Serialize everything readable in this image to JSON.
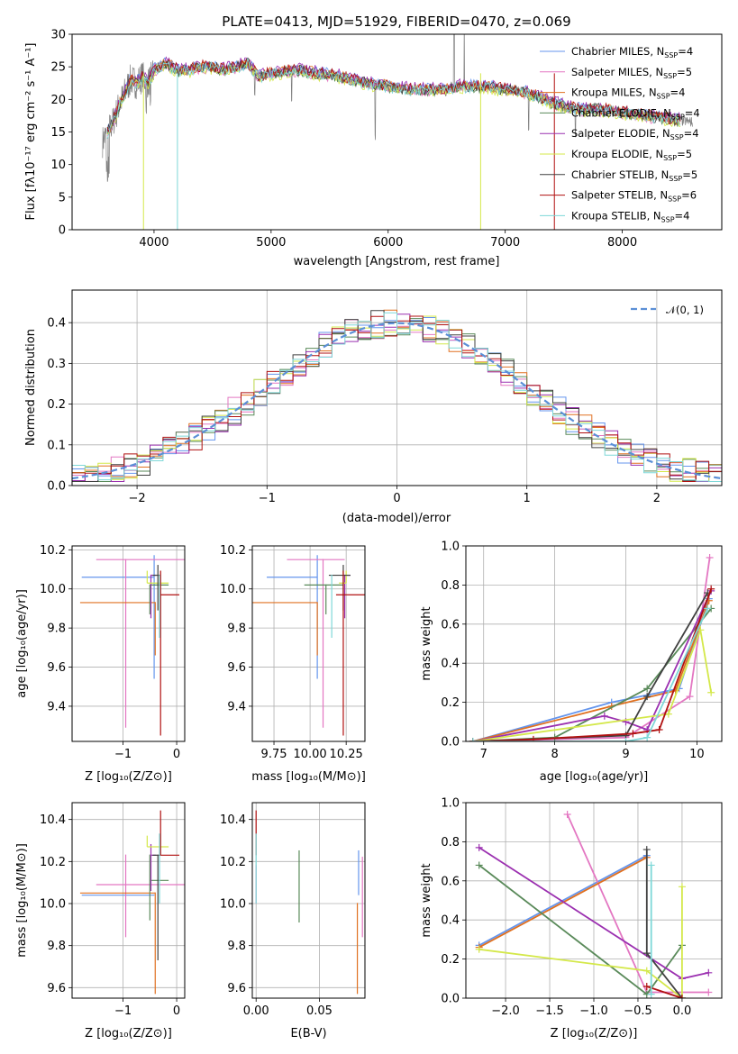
{
  "chart_data": [
    {
      "type": "line",
      "title": "PLATE=0413, MJD=51929, FIBERID=0470, z=0.069",
      "xlabel": "wavelength [Angstrom, rest frame]",
      "ylabel": "Flux [f_λ 10^-17 erg cm^-2 s^-1 A^-1]",
      "xlim": [
        3300,
        8850
      ],
      "ylim": [
        0,
        30
      ],
      "xticks": [
        "4000",
        "5000",
        "6000",
        "7000",
        "8000"
      ],
      "yticks": [
        "0",
        "5",
        "10",
        "15",
        "20",
        "25",
        "30"
      ],
      "legend_position": "top-right",
      "data_series": {
        "name": "data",
        "color": "#808080",
        "x": [
          3560,
          3600,
          3650,
          3700,
          3750,
          3800,
          3850,
          3900,
          3950,
          4000,
          4100,
          4200,
          4300,
          4400,
          4500,
          4600,
          4700,
          4800,
          4900,
          5000,
          5200,
          5400,
          5600,
          5800,
          6000,
          6200,
          6400,
          6500,
          6600,
          6800,
          7000,
          7200,
          7400,
          7600,
          7800,
          8000,
          8200,
          8400,
          8600
        ],
        "y": [
          13.5,
          15,
          16.5,
          19,
          21,
          23,
          22.5,
          23.5,
          22.5,
          24.5,
          25.5,
          24.5,
          24.5,
          25,
          25,
          24.5,
          25,
          25.5,
          23.5,
          24,
          24.5,
          24,
          23.5,
          22.5,
          22,
          21.5,
          21.5,
          21.5,
          22,
          22,
          21.5,
          21,
          19.5,
          18.5,
          18.5,
          18,
          17.5,
          17,
          16.5
        ]
      },
      "series": [
        {
          "name": "Chabrier MILES, N_SSP=4",
          "label_main": "Chabrier MILES, N",
          "label_sub": "SSP",
          "label_val": "=4",
          "color": "#6495ed",
          "offset": 0.2
        },
        {
          "name": "Salpeter MILES, N_SSP=5",
          "label_main": "Salpeter MILES, N",
          "label_sub": "SSP",
          "label_val": "=5",
          "color": "#e377c2",
          "offset": -0.2
        },
        {
          "name": "Kroupa MILES, N_SSP=4",
          "label_main": "Kroupa MILES, N",
          "label_sub": "SSP",
          "label_val": "=4",
          "color": "#e07020",
          "offset": 0.1
        },
        {
          "name": "Chabrier ELODIE, N_SSP=4",
          "label_main": "Chabrier ELODIE, N",
          "label_sub": "SSP",
          "label_val": "=4",
          "color": "#5a8a5a",
          "offset": -0.1
        },
        {
          "name": "Salpeter ELODIE, N_SSP=4",
          "label_main": "Salpeter ELODIE, N",
          "label_sub": "SSP",
          "label_val": "=4",
          "color": "#9b30b0",
          "offset": 0.3
        },
        {
          "name": "Kroupa ELODIE, N_SSP=5",
          "label_main": "Kroupa ELODIE, N",
          "label_sub": "SSP",
          "label_val": "=5",
          "color": "#d4e84a",
          "offset": -0.3
        },
        {
          "name": "Chabrier STELIB, N_SSP=5",
          "label_main": "Chabrier STELIB, N",
          "label_sub": "SSP",
          "label_val": "=5",
          "color": "#404040",
          "offset": 0.0
        },
        {
          "name": "Salpeter STELIB, N_SSP=6",
          "label_main": "Salpeter STELIB, N",
          "label_sub": "SSP",
          "label_val": "=6",
          "color": "#b01010",
          "offset": 0.15
        },
        {
          "name": "Kroupa STELIB, N_SSP=4",
          "label_main": "Kroupa STELIB, N",
          "label_sub": "SSP",
          "label_val": "=4",
          "color": "#7ed8d8",
          "offset": -0.15
        }
      ]
    },
    {
      "type": "histogram",
      "xlabel": "(data-model)/error",
      "ylabel": "Normed distribution",
      "xlim": [
        -2.5,
        2.5
      ],
      "ylim": [
        0,
        0.48
      ],
      "xticks": [
        "−2",
        "−1",
        "0",
        "1",
        "2"
      ],
      "yticks": [
        "0.0",
        "0.1",
        "0.2",
        "0.3",
        "0.4"
      ],
      "legend_position": "top-right",
      "reference": {
        "name": "N(0,1)",
        "color": "#5b8fd6",
        "mean": 0,
        "sigma": 1
      },
      "bin_width": 0.1,
      "bin_start": -2.6
    },
    {
      "type": "errorbar",
      "xlabel": "Z [log10(Z/Z⊙)]",
      "ylabel": "age [log10(age/yr)]",
      "xlim": [
        -1.95,
        0.15
      ],
      "ylim": [
        9.22,
        10.22
      ],
      "xticks": [
        "−1",
        "0"
      ],
      "yticks": [
        "9.4",
        "9.6",
        "9.8",
        "10.0",
        "10.2"
      ],
      "points": [
        {
          "color": "#6495ed",
          "x": -0.42,
          "xerr": [
            1.35,
            0.0
          ],
          "y": 10.06,
          "yerr": [
            0.52,
            0.11
          ]
        },
        {
          "color": "#e377c2",
          "x": -0.95,
          "xerr": [
            0.55,
            1.1
          ],
          "y": 10.15,
          "yerr": [
            0.86,
            0.0
          ]
        },
        {
          "color": "#e07020",
          "x": -0.4,
          "xerr": [
            1.4,
            0.0
          ],
          "y": 9.93,
          "yerr": [
            0.27,
            0.0
          ]
        },
        {
          "color": "#5a8a5a",
          "x": -0.5,
          "xerr": [
            0.0,
            0.35
          ],
          "y": 10.02,
          "yerr": [
            0.15,
            0.0
          ]
        },
        {
          "color": "#9b30b0",
          "x": -0.48,
          "xerr": [
            0.0,
            0.1
          ],
          "y": 10.07,
          "yerr": [
            0.22,
            0.0
          ]
        },
        {
          "color": "#d4e84a",
          "x": -0.55,
          "xerr": [
            0.0,
            0.4
          ],
          "y": 10.03,
          "yerr": [
            0.0,
            0.06
          ]
        },
        {
          "color": "#404040",
          "x": -0.35,
          "xerr": [
            0.1,
            0.05
          ],
          "y": 10.07,
          "yerr": [
            0.18,
            0.05
          ]
        },
        {
          "color": "#b01010",
          "x": -0.3,
          "xerr": [
            0.0,
            0.35
          ],
          "y": 9.97,
          "yerr": [
            0.72,
            0.12
          ]
        },
        {
          "color": "#7ed8d8",
          "x": -0.32,
          "xerr": [
            0.0,
            0.0
          ],
          "y": 10.05,
          "yerr": [
            0.3,
            0.02
          ]
        }
      ]
    },
    {
      "type": "errorbar",
      "xlabel": "mass [log10(M/M⊙)]",
      "ylabel": "",
      "xlim": [
        9.6,
        10.38
      ],
      "ylim": [
        9.22,
        10.22
      ],
      "xticks": [
        "9.75",
        "10.00",
        "10.25"
      ],
      "yticks": [
        "9.4",
        "9.6",
        "9.8",
        "10.0",
        "10.2"
      ],
      "points": [
        {
          "color": "#6495ed",
          "x": 10.05,
          "xerr": [
            0.35,
            0.0
          ],
          "y": 10.06,
          "yerr": [
            0.52,
            0.11
          ]
        },
        {
          "color": "#e377c2",
          "x": 10.09,
          "xerr": [
            0.25,
            0.15
          ],
          "y": 10.15,
          "yerr": [
            0.86,
            0.0
          ]
        },
        {
          "color": "#e07020",
          "x": 10.05,
          "xerr": [
            0.48,
            0.0
          ],
          "y": 9.93,
          "yerr": [
            0.27,
            0.0
          ]
        },
        {
          "color": "#5a8a5a",
          "x": 10.11,
          "xerr": [
            0.15,
            0.12
          ],
          "y": 10.02,
          "yerr": [
            0.15,
            0.0
          ]
        },
        {
          "color": "#9b30b0",
          "x": 10.24,
          "xerr": [
            0.0,
            0.04
          ],
          "y": 10.07,
          "yerr": [
            0.22,
            0.0
          ]
        },
        {
          "color": "#d4e84a",
          "x": 10.25,
          "xerr": [
            0.05,
            0.0
          ],
          "y": 10.03,
          "yerr": [
            0.0,
            0.06
          ]
        },
        {
          "color": "#404040",
          "x": 10.23,
          "xerr": [
            0.1,
            0.05
          ],
          "y": 10.07,
          "yerr": [
            0.18,
            0.05
          ]
        },
        {
          "color": "#b01010",
          "x": 10.23,
          "xerr": [
            0.05,
            0.15
          ],
          "y": 9.97,
          "yerr": [
            0.72,
            0.12
          ]
        },
        {
          "color": "#7ed8d8",
          "x": 10.15,
          "xerr": [
            0.0,
            0.0
          ],
          "y": 10.05,
          "yerr": [
            0.3,
            0.02
          ]
        }
      ]
    },
    {
      "type": "line",
      "xlabel": "age [log10(age/yr)]",
      "ylabel": "mass weight",
      "xlim": [
        6.75,
        10.35
      ],
      "ylim": [
        0,
        1.0
      ],
      "xticks": [
        "7",
        "8",
        "9",
        "10"
      ],
      "yticks": [
        "0.0",
        "0.2",
        "0.4",
        "0.6",
        "0.8",
        "1.0"
      ],
      "series": [
        {
          "color": "#6495ed",
          "x": [
            6.85,
            8.8,
            9.75,
            10.17
          ],
          "y": [
            0.0,
            0.2,
            0.27,
            0.73
          ]
        },
        {
          "color": "#e377c2",
          "x": [
            6.85,
            9.0,
            9.9,
            10.18
          ],
          "y": [
            0.0,
            0.02,
            0.23,
            0.94
          ]
        },
        {
          "color": "#e07020",
          "x": [
            6.85,
            8.8,
            9.7,
            10.17
          ],
          "y": [
            0.0,
            0.18,
            0.26,
            0.72
          ]
        },
        {
          "color": "#5a8a5a",
          "x": [
            6.85,
            8.0,
            9.3,
            10.2
          ],
          "y": [
            0.0,
            0.02,
            0.27,
            0.68
          ]
        },
        {
          "color": "#9b30b0",
          "x": [
            6.85,
            8.7,
            9.0,
            9.3,
            10.2
          ],
          "y": [
            0.0,
            0.13,
            0.1,
            0.06,
            0.77
          ]
        },
        {
          "color": "#d4e84a",
          "x": [
            6.85,
            9.6,
            10.05,
            10.2
          ],
          "y": [
            0.0,
            0.14,
            0.57,
            0.25
          ]
        },
        {
          "color": "#404040",
          "x": [
            6.85,
            9.0,
            9.3,
            10.15
          ],
          "y": [
            0.0,
            0.03,
            0.23,
            0.76
          ]
        },
        {
          "color": "#b01010",
          "x": [
            6.85,
            7.7,
            9.1,
            9.47,
            10.2
          ],
          "y": [
            0.0,
            0.01,
            0.04,
            0.06,
            0.78
          ]
        },
        {
          "color": "#7ed8d8",
          "x": [
            6.85,
            9.0,
            9.3,
            10.15
          ],
          "y": [
            0.0,
            0.0,
            0.02,
            0.68
          ]
        }
      ]
    },
    {
      "type": "errorbar",
      "xlabel": "Z [log10(Z/Z⊙)]",
      "ylabel": "mass [log10(M/M⊙)]",
      "xlim": [
        -1.95,
        0.15
      ],
      "ylim": [
        9.55,
        10.48
      ],
      "xticks": [
        "−1",
        "0"
      ],
      "yticks": [
        "9.6",
        "9.8",
        "10.0",
        "10.2",
        "10.4"
      ],
      "points": [
        {
          "color": "#6495ed",
          "x": -0.42,
          "xerr": [
            1.35,
            0.0
          ],
          "y": 10.04,
          "yerr": [
            0.0,
            0.0
          ]
        },
        {
          "color": "#e377c2",
          "x": -0.95,
          "xerr": [
            0.55,
            1.1
          ],
          "y": 10.09,
          "yerr": [
            0.25,
            0.14
          ]
        },
        {
          "color": "#e07020",
          "x": -0.4,
          "xerr": [
            1.4,
            0.0
          ],
          "y": 10.05,
          "yerr": [
            0.48,
            0.0
          ]
        },
        {
          "color": "#5a8a5a",
          "x": -0.5,
          "xerr": [
            0.0,
            0.35
          ],
          "y": 10.11,
          "yerr": [
            0.19,
            0.12
          ]
        },
        {
          "color": "#9b30b0",
          "x": -0.48,
          "xerr": [
            0.0,
            0.1
          ],
          "y": 10.23,
          "yerr": [
            0.17,
            0.05
          ]
        },
        {
          "color": "#d4e84a",
          "x": -0.55,
          "xerr": [
            0.0,
            0.4
          ],
          "y": 10.27,
          "yerr": [
            0.0,
            0.05
          ]
        },
        {
          "color": "#404040",
          "x": -0.35,
          "xerr": [
            0.1,
            0.05
          ],
          "y": 10.23,
          "yerr": [
            0.5,
            0.0
          ]
        },
        {
          "color": "#b01010",
          "x": -0.3,
          "xerr": [
            0.0,
            0.35
          ],
          "y": 10.23,
          "yerr": [
            0.0,
            0.21
          ]
        },
        {
          "color": "#7ed8d8",
          "x": -0.32,
          "xerr": [
            0.0,
            0.0
          ],
          "y": 10.18,
          "yerr": [
            0.18,
            0.15
          ]
        }
      ]
    },
    {
      "type": "errorbar",
      "xlabel": "E(B-V)",
      "ylabel": "",
      "xlim": [
        -0.003,
        0.086
      ],
      "ylim": [
        9.55,
        10.48
      ],
      "xticks": [
        "0.00",
        "0.05"
      ],
      "yticks": [
        "9.6",
        "9.8",
        "10.0",
        "10.2",
        "10.4"
      ],
      "points": [
        {
          "color": "#b01010",
          "x": 0.0,
          "y": 10.23,
          "yerr": [
            0.0,
            0.21
          ]
        },
        {
          "color": "#e377c2",
          "x": 0.0,
          "y": 10.18,
          "yerr": [
            0.18,
            0.0
          ]
        },
        {
          "color": "#7ed8d8",
          "x": 0.0,
          "y": 10.18,
          "yerr": [
            0.18,
            0.15
          ]
        },
        {
          "color": "#5a8a5a",
          "x": 0.034,
          "y": 10.08,
          "yerr": [
            0.17,
            0.17
          ]
        },
        {
          "color": "#e07020",
          "x": 0.08,
          "y": 10.0,
          "yerr": [
            0.43,
            0.0
          ]
        },
        {
          "color": "#6495ed",
          "x": 0.081,
          "y": 10.04,
          "yerr": [
            0.0,
            0.21
          ]
        },
        {
          "color": "#e377c2",
          "x": 0.084,
          "y": 10.0,
          "yerr": [
            0.16,
            0.22
          ]
        }
      ]
    },
    {
      "type": "line",
      "xlabel": "Z [log10(Z/Z⊙)]",
      "ylabel": "mass weight",
      "xlim": [
        -2.45,
        0.45
      ],
      "ylim": [
        0,
        1.0
      ],
      "xticks": [
        "−2.0",
        "−1.5",
        "−1.0",
        "−0.5",
        "0.0"
      ],
      "yticks": [
        "0.0",
        "0.2",
        "0.4",
        "0.6",
        "0.8",
        "1.0"
      ],
      "series": [
        {
          "color": "#6495ed",
          "x": [
            -2.3,
            -0.4
          ],
          "y": [
            0.27,
            0.73
          ]
        },
        {
          "color": "#e377c2",
          "x": [
            -1.3,
            -0.4,
            0.3
          ],
          "y": [
            0.94,
            0.03,
            0.03
          ]
        },
        {
          "color": "#e07020",
          "x": [
            -2.3,
            -0.4
          ],
          "y": [
            0.26,
            0.72
          ]
        },
        {
          "color": "#5a8a5a",
          "x": [
            -2.3,
            -0.4,
            0.0
          ],
          "y": [
            0.68,
            0.02,
            0.27
          ]
        },
        {
          "color": "#9b30b0",
          "x": [
            -2.3,
            0.0,
            0.3
          ],
          "y": [
            0.77,
            0.1,
            0.13
          ]
        },
        {
          "color": "#d4e84a",
          "x": [
            -2.3,
            -0.4,
            0.0,
            0.0
          ],
          "y": [
            0.25,
            0.14,
            0.0,
            0.57
          ]
        },
        {
          "color": "#404040",
          "x": [
            -0.4,
            -0.4,
            0.0
          ],
          "y": [
            0.76,
            0.23,
            0.0
          ]
        },
        {
          "color": "#b01010",
          "x": [
            -0.4,
            0.0
          ],
          "y": [
            0.06,
            0.0
          ]
        },
        {
          "color": "#7ed8d8",
          "x": [
            -0.35,
            -0.35
          ],
          "y": [
            0.68,
            0.02
          ]
        }
      ]
    }
  ]
}
